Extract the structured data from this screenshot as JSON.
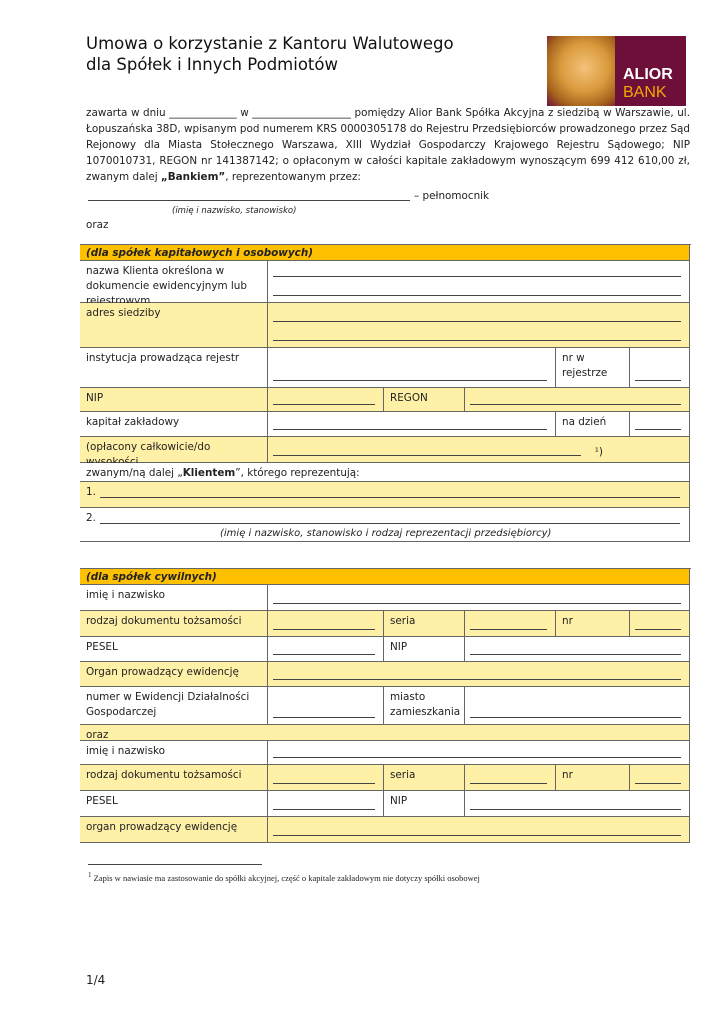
{
  "title": {
    "line1": "Umowa o korzystanie z Kantoru Walutowego",
    "line2": "dla Spółek i Innych Podmiotów"
  },
  "logo": {
    "line1": "ALIOR",
    "line2": "BANK"
  },
  "intro": {
    "p1": "zawarta w dniu _____________ w ___________________ pomiędzy Alior Bank Spółka Akcyjna z siedzibą w Warszawie, ul. Łopuszańska 38D, wpisanym pod numerem KRS 0000305178 do Rejestru Przedsiębiorców prowadzonego przez Sąd Rejonowy dla Miasta Stołecznego Warszawa, XIII Wydział Gospodarczy Krajowego Rejestru Sądowego; NIP 1070010731, REGON nr 141387142; o opłaconym w całości kapitale zakładowym wynoszącym 699 412 610,00 zł, zwanym dalej ",
    "bold": "„Bankiem”",
    "p2": ", reprezentowanym przez:"
  },
  "attorney": {
    "label": "– pełnomocnik",
    "caption": "(imię i nazwisko, stanowisko)"
  },
  "oraz": "oraz",
  "table1": {
    "header": "(dla spółek kapitałowych i osobowych)",
    "client_name": "nazwa Klienta określona w dokumencie ewidencyjnym lub rejestrowym",
    "address": "adres siedziby",
    "registry": "instytucja prowadząca rejestr",
    "registry_no": "nr w rejestrze",
    "nip": "NIP",
    "regon": "REGON",
    "capital": "kapitał zakładowy",
    "as_of": "na dzień",
    "paid": "(opłacony całkowicie/do wysokości",
    "paid_suffix": "¹)",
    "client_pre": "zwanym/ną dalej „",
    "client_bold": "Klientem",
    "client_post": "”, którego reprezentują:",
    "rep1": "1.",
    "rep2": "2.",
    "rep_caption": "(imię i nazwisko, stanowisko i rodzaj reprezentacji przedsiębiorcy)"
  },
  "table2": {
    "header": "(dla spółek cywilnych)",
    "name": "imię i nazwisko",
    "id_doc": "rodzaj dokumentu tożsamości",
    "series": "seria",
    "nr": "nr",
    "pesel": "PESEL",
    "nip": "NIP",
    "organ": "Organ prowadzący ewidencję",
    "reg_no": "numer w Ewidencji Działalności Gospodarczej",
    "city": "miasto zamieszkania",
    "oraz": "oraz",
    "name2": "imię i nazwisko",
    "id_doc2": "rodzaj dokumentu tożsamości",
    "series2": "seria",
    "nr2": "nr",
    "pesel2": "PESEL",
    "nip2": "NIP",
    "organ2": "organ prowadzący ewidencję"
  },
  "footnote": {
    "mark": "1",
    "text": "Zapis w nawiasie ma zastosowanie do spółki akcyjnej, część o kapitale zakładowym nie dotyczy spółki osobowej"
  },
  "page_number": "1/4",
  "colors": {
    "header": "#ffc000",
    "light": "#fff0a8",
    "brand": "#6e0f3a"
  }
}
